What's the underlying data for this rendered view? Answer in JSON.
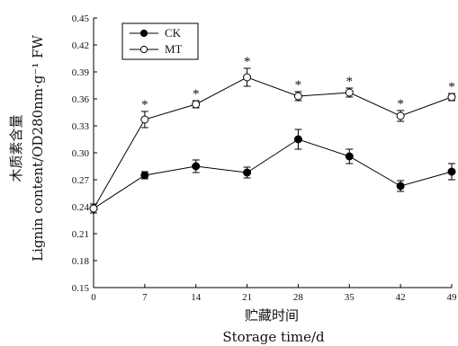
{
  "chart_data": {
    "type": "line",
    "x": [
      0,
      7,
      14,
      21,
      28,
      35,
      42,
      49
    ],
    "xlabel_cn": "贮藏时间",
    "xlabel_en": "Storage time/d",
    "ylabel_cn": "木质素含量",
    "ylabel_en": "Lignin content/OD280nm·g⁻¹ FW",
    "ylim": [
      0.15,
      0.45
    ],
    "yticks": [
      "0.15",
      "0.18",
      "0.21",
      "0.24",
      "0.27",
      "0.30",
      "0.33",
      "0.36",
      "0.39",
      "0.42",
      "0.45"
    ],
    "xticks": [
      "0",
      "7",
      "14",
      "21",
      "28",
      "35",
      "42",
      "49"
    ],
    "legend_position": "top-left",
    "significance_marker": "*",
    "series": [
      {
        "name": "CK",
        "marker": "filled-circle",
        "values": [
          0.238,
          0.275,
          0.285,
          0.278,
          0.315,
          0.296,
          0.263,
          0.279
        ],
        "errors": [
          0.005,
          0.004,
          0.007,
          0.006,
          0.011,
          0.008,
          0.006,
          0.009
        ],
        "significant": [
          false,
          false,
          false,
          false,
          false,
          false,
          false,
          false
        ]
      },
      {
        "name": "MT",
        "marker": "open-circle",
        "values": [
          0.238,
          0.337,
          0.354,
          0.384,
          0.363,
          0.367,
          0.341,
          0.362
        ],
        "errors": [
          0.005,
          0.009,
          0.004,
          0.01,
          0.005,
          0.005,
          0.006,
          0.004
        ],
        "significant": [
          false,
          true,
          true,
          true,
          true,
          true,
          true,
          true
        ]
      }
    ]
  }
}
